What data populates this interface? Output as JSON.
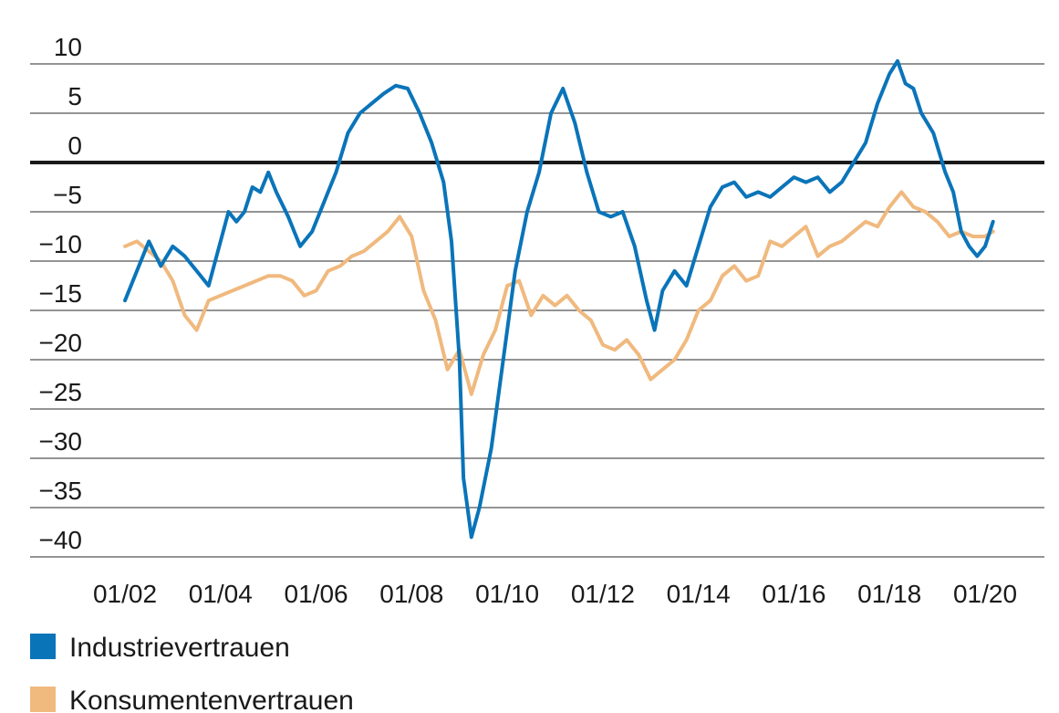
{
  "chart_data": {
    "type": "line",
    "title": "",
    "xlabel": "",
    "ylabel": "",
    "ylim": [
      -40,
      10
    ],
    "xlim": [
      "2001-07",
      "2020-06"
    ],
    "yticks": [
      10,
      5,
      0,
      -5,
      -10,
      -15,
      -20,
      -25,
      -30,
      -35,
      -40
    ],
    "ytick_labels": [
      "10",
      "5",
      "0",
      "−5",
      "−10",
      "−15",
      "−20",
      "−25",
      "−30",
      "−35",
      "−40"
    ],
    "xticks": [
      "2002-01",
      "2004-01",
      "2006-01",
      "2008-01",
      "2010-01",
      "2012-01",
      "2014-01",
      "2016-01",
      "2018-01",
      "2020-01"
    ],
    "xtick_labels": [
      "01/02",
      "01/04",
      "01/06",
      "01/08",
      "01/10",
      "01/12",
      "01/14",
      "01/16",
      "01/18",
      "01/20"
    ],
    "grid": "horizontal",
    "zero_line": true,
    "legend_position": "bottom-left",
    "series": [
      {
        "name": "Industrievertrauen",
        "color": "#0a74b9",
        "points": [
          [
            "2002-01",
            -14
          ],
          [
            "2002-04",
            -11
          ],
          [
            "2002-07",
            -8
          ],
          [
            "2002-10",
            -10.5
          ],
          [
            "2003-01",
            -8.5
          ],
          [
            "2003-04",
            -9.5
          ],
          [
            "2003-07",
            -11
          ],
          [
            "2003-10",
            -12.5
          ],
          [
            "2004-01",
            -8
          ],
          [
            "2004-03",
            -5
          ],
          [
            "2004-05",
            -6
          ],
          [
            "2004-07",
            -5
          ],
          [
            "2004-09",
            -2.5
          ],
          [
            "2004-11",
            -3
          ],
          [
            "2005-01",
            -1
          ],
          [
            "2005-03",
            -3
          ],
          [
            "2005-06",
            -5.5
          ],
          [
            "2005-09",
            -8.5
          ],
          [
            "2005-12",
            -7
          ],
          [
            "2006-03",
            -4
          ],
          [
            "2006-06",
            -1
          ],
          [
            "2006-09",
            3
          ],
          [
            "2006-12",
            5
          ],
          [
            "2007-03",
            6
          ],
          [
            "2007-06",
            7
          ],
          [
            "2007-09",
            7.8
          ],
          [
            "2007-12",
            7.5
          ],
          [
            "2008-03",
            5
          ],
          [
            "2008-06",
            2
          ],
          [
            "2008-09",
            -2
          ],
          [
            "2008-11",
            -8
          ],
          [
            "2009-01",
            -20
          ],
          [
            "2009-02",
            -32
          ],
          [
            "2009-03",
            -35
          ],
          [
            "2009-04",
            -38
          ],
          [
            "2009-06",
            -35
          ],
          [
            "2009-09",
            -29
          ],
          [
            "2009-12",
            -20
          ],
          [
            "2010-03",
            -11
          ],
          [
            "2010-06",
            -5
          ],
          [
            "2010-09",
            -1
          ],
          [
            "2010-12",
            5
          ],
          [
            "2011-03",
            7.5
          ],
          [
            "2011-06",
            4
          ],
          [
            "2011-09",
            -1
          ],
          [
            "2011-12",
            -5
          ],
          [
            "2012-03",
            -5.5
          ],
          [
            "2012-06",
            -5
          ],
          [
            "2012-09",
            -8.5
          ],
          [
            "2012-12",
            -14
          ],
          [
            "2013-02",
            -17
          ],
          [
            "2013-04",
            -13
          ],
          [
            "2013-07",
            -11
          ],
          [
            "2013-10",
            -12.5
          ],
          [
            "2014-01",
            -8.5
          ],
          [
            "2014-04",
            -4.5
          ],
          [
            "2014-07",
            -2.5
          ],
          [
            "2014-10",
            -2
          ],
          [
            "2015-01",
            -3.5
          ],
          [
            "2015-04",
            -3
          ],
          [
            "2015-07",
            -3.5
          ],
          [
            "2015-10",
            -2.5
          ],
          [
            "2016-01",
            -1.5
          ],
          [
            "2016-04",
            -2
          ],
          [
            "2016-07",
            -1.5
          ],
          [
            "2016-10",
            -3
          ],
          [
            "2017-01",
            -2
          ],
          [
            "2017-04",
            0
          ],
          [
            "2017-07",
            2
          ],
          [
            "2017-10",
            6
          ],
          [
            "2018-01",
            9
          ],
          [
            "2018-03",
            10.3
          ],
          [
            "2018-05",
            8
          ],
          [
            "2018-07",
            7.5
          ],
          [
            "2018-09",
            5
          ],
          [
            "2018-12",
            3
          ],
          [
            "2019-03",
            -1
          ],
          [
            "2019-05",
            -3
          ],
          [
            "2019-07",
            -7
          ],
          [
            "2019-09",
            -8.5
          ],
          [
            "2019-11",
            -9.5
          ],
          [
            "2020-01",
            -8.5
          ],
          [
            "2020-03",
            -6
          ]
        ]
      },
      {
        "name": "Konsumentenvertrauen",
        "color": "#f0b97e",
        "points": [
          [
            "2002-01",
            -8.5
          ],
          [
            "2002-04",
            -8
          ],
          [
            "2002-07",
            -9
          ],
          [
            "2002-10",
            -10
          ],
          [
            "2003-01",
            -12
          ],
          [
            "2003-04",
            -15.5
          ],
          [
            "2003-07",
            -17
          ],
          [
            "2003-10",
            -14
          ],
          [
            "2004-01",
            -13.5
          ],
          [
            "2004-04",
            -13
          ],
          [
            "2004-07",
            -12.5
          ],
          [
            "2004-10",
            -12
          ],
          [
            "2005-01",
            -11.5
          ],
          [
            "2005-04",
            -11.5
          ],
          [
            "2005-07",
            -12
          ],
          [
            "2005-10",
            -13.5
          ],
          [
            "2006-01",
            -13
          ],
          [
            "2006-04",
            -11
          ],
          [
            "2006-07",
            -10.5
          ],
          [
            "2006-10",
            -9.5
          ],
          [
            "2007-01",
            -9
          ],
          [
            "2007-04",
            -8
          ],
          [
            "2007-07",
            -7
          ],
          [
            "2007-10",
            -5.5
          ],
          [
            "2008-01",
            -7.5
          ],
          [
            "2008-04",
            -13
          ],
          [
            "2008-07",
            -16
          ],
          [
            "2008-10",
            -21
          ],
          [
            "2009-01",
            -19
          ],
          [
            "2009-04",
            -23.5
          ],
          [
            "2009-07",
            -19.5
          ],
          [
            "2009-10",
            -17
          ],
          [
            "2010-01",
            -12.5
          ],
          [
            "2010-04",
            -12
          ],
          [
            "2010-07",
            -15.5
          ],
          [
            "2010-10",
            -13.5
          ],
          [
            "2011-01",
            -14.5
          ],
          [
            "2011-04",
            -13.5
          ],
          [
            "2011-07",
            -15
          ],
          [
            "2011-10",
            -16
          ],
          [
            "2012-01",
            -18.5
          ],
          [
            "2012-04",
            -19
          ],
          [
            "2012-07",
            -18
          ],
          [
            "2012-10",
            -19.5
          ],
          [
            "2013-01",
            -22
          ],
          [
            "2013-04",
            -21
          ],
          [
            "2013-07",
            -20
          ],
          [
            "2013-10",
            -18
          ],
          [
            "2014-01",
            -15
          ],
          [
            "2014-04",
            -14
          ],
          [
            "2014-07",
            -11.5
          ],
          [
            "2014-10",
            -10.5
          ],
          [
            "2015-01",
            -12
          ],
          [
            "2015-04",
            -11.5
          ],
          [
            "2015-07",
            -8
          ],
          [
            "2015-10",
            -8.5
          ],
          [
            "2016-01",
            -7.5
          ],
          [
            "2016-04",
            -6.5
          ],
          [
            "2016-07",
            -9.5
          ],
          [
            "2016-10",
            -8.5
          ],
          [
            "2017-01",
            -8
          ],
          [
            "2017-04",
            -7
          ],
          [
            "2017-07",
            -6
          ],
          [
            "2017-10",
            -6.5
          ],
          [
            "2018-01",
            -4.5
          ],
          [
            "2018-04",
            -3
          ],
          [
            "2018-07",
            -4.5
          ],
          [
            "2018-10",
            -5
          ],
          [
            "2019-01",
            -6
          ],
          [
            "2019-04",
            -7.5
          ],
          [
            "2019-07",
            -7
          ],
          [
            "2019-10",
            -7.5
          ],
          [
            "2020-01",
            -7.5
          ],
          [
            "2020-03",
            -7
          ]
        ]
      }
    ]
  },
  "legend": {
    "items": [
      {
        "label": "Industrievertrauen",
        "color": "#0a74b9"
      },
      {
        "label": "Konsumentenvertrauen",
        "color": "#f0b97e"
      }
    ]
  }
}
